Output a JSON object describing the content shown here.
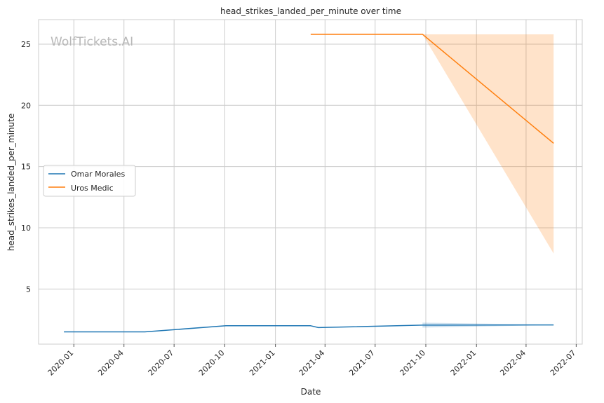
{
  "chart_data": {
    "type": "line",
    "title": "head_strikes_landed_per_minute over time",
    "xlabel": "Date",
    "ylabel": "head_strikes_landed_per_minute",
    "watermark": "WolfTickets.AI",
    "xlim": [
      "2019-10-29",
      "2022-07-12"
    ],
    "ylim": [
      0.5,
      27
    ],
    "x_ticks": [
      "2020-01",
      "2020-04",
      "2020-07",
      "2020-10",
      "2021-01",
      "2021-04",
      "2021-07",
      "2021-10",
      "2022-01",
      "2022-04",
      "2022-07"
    ],
    "y_ticks": [
      5,
      10,
      15,
      20,
      25
    ],
    "grid": true,
    "legend_position": "center-left",
    "series": [
      {
        "name": "Omar Morales",
        "color": "#1f77b4",
        "points": [
          {
            "x": "2019-12-14",
            "y": 1.5
          },
          {
            "x": "2020-05-09",
            "y": 1.5
          },
          {
            "x": "2020-10-03",
            "y": 2.0
          },
          {
            "x": "2021-03-06",
            "y": 2.0
          },
          {
            "x": "2021-03-20",
            "y": 1.85
          },
          {
            "x": "2021-09-25",
            "y": 2.05
          },
          {
            "x": "2022-05-21",
            "y": 2.07
          }
        ],
        "band": [
          {
            "x": "2021-09-25",
            "lower": 1.85,
            "upper": 2.25
          },
          {
            "x": "2022-05-21",
            "lower": 2.05,
            "upper": 2.09
          }
        ]
      },
      {
        "name": "Uros Medic",
        "color": "#ff7f0e",
        "points": [
          {
            "x": "2021-03-06",
            "y": 25.8
          },
          {
            "x": "2021-09-25",
            "y": 25.8
          },
          {
            "x": "2022-05-21",
            "y": 16.9
          }
        ],
        "band": [
          {
            "x": "2021-09-25",
            "lower": 25.8,
            "upper": 25.8
          },
          {
            "x": "2022-05-21",
            "lower": 7.9,
            "upper": 25.8
          }
        ]
      }
    ]
  }
}
